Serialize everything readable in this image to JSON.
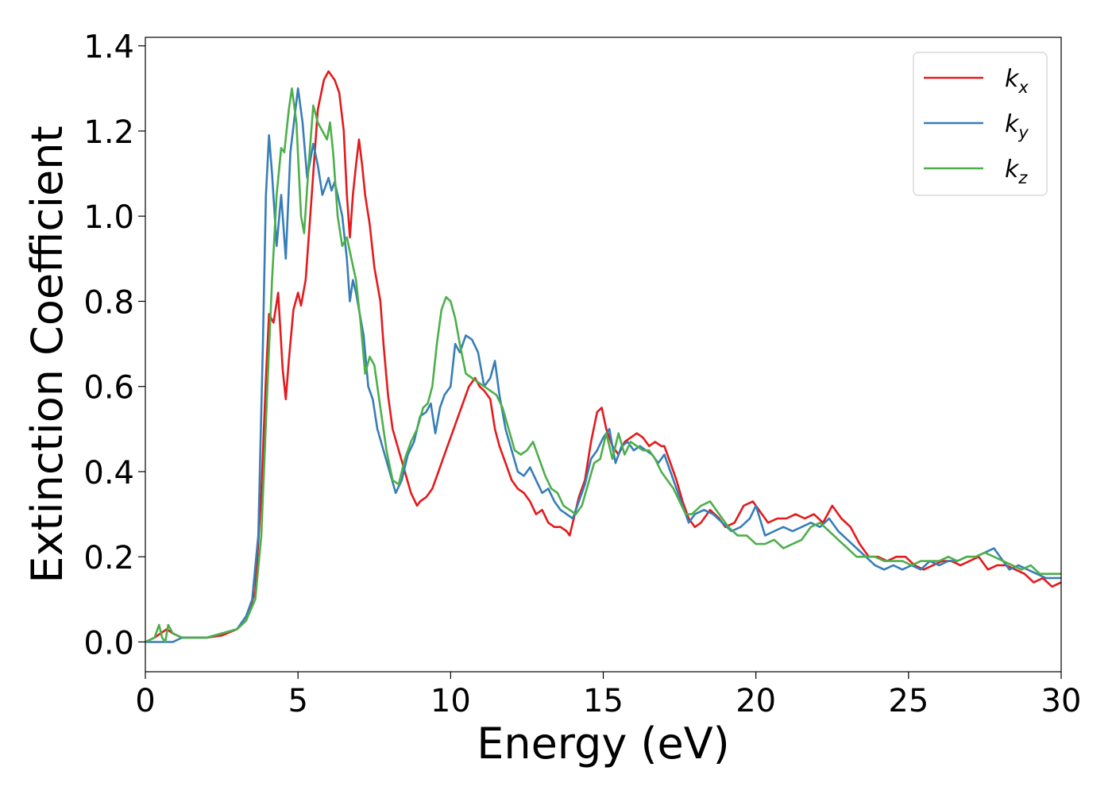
{
  "chart_data": {
    "type": "line",
    "title": "",
    "xlabel": "Energy (eV)",
    "ylabel": "Extinction Coefficient",
    "xlim": [
      0,
      30
    ],
    "ylim": [
      -0.07,
      1.42
    ],
    "xticks": [
      0,
      5,
      10,
      15,
      20,
      25,
      30
    ],
    "xtick_labels": [
      "0",
      "5",
      "10",
      "15",
      "20",
      "25",
      "30"
    ],
    "yticks": [
      0.0,
      0.2,
      0.4,
      0.6,
      0.8,
      1.0,
      1.2,
      1.4
    ],
    "ytick_labels": [
      "0.0",
      "0.2",
      "0.4",
      "0.6",
      "0.8",
      "1.0",
      "1.2",
      "1.4"
    ],
    "grid": false,
    "legend_position": "top-right",
    "series": [
      {
        "name": "k_x",
        "label_main": "k",
        "label_sub": "x",
        "color": "#e41a1c",
        "x": [
          0,
          0.3,
          0.5,
          0.7,
          0.9,
          1.2,
          1.5,
          2.0,
          2.5,
          3.0,
          3.3,
          3.6,
          3.8,
          3.95,
          4.05,
          4.2,
          4.35,
          4.5,
          4.6,
          4.7,
          4.85,
          5.0,
          5.1,
          5.25,
          5.45,
          5.65,
          5.85,
          6.0,
          6.2,
          6.35,
          6.5,
          6.6,
          6.7,
          6.8,
          6.9,
          7.0,
          7.1,
          7.2,
          7.35,
          7.5,
          7.6,
          7.7,
          7.8,
          7.95,
          8.1,
          8.3,
          8.5,
          8.7,
          8.9,
          9.0,
          9.2,
          9.4,
          9.6,
          9.8,
          10.0,
          10.2,
          10.4,
          10.6,
          10.8,
          10.95,
          11.1,
          11.2,
          11.3,
          11.45,
          11.6,
          11.8,
          12.0,
          12.2,
          12.4,
          12.6,
          12.8,
          13.0,
          13.2,
          13.4,
          13.6,
          13.8,
          13.9,
          14.0,
          14.2,
          14.4,
          14.6,
          14.8,
          14.95,
          15.1,
          15.3,
          15.5,
          15.7,
          15.9,
          16.1,
          16.3,
          16.5,
          16.7,
          16.9,
          17.0,
          17.2,
          17.4,
          17.6,
          17.8,
          18.0,
          18.2,
          18.5,
          18.8,
          19.0,
          19.3,
          19.6,
          19.9,
          20.1,
          20.4,
          20.7,
          21.0,
          21.3,
          21.6,
          21.9,
          22.2,
          22.5,
          22.8,
          23.1,
          23.4,
          23.7,
          24.0,
          24.3,
          24.6,
          24.9,
          25.2,
          25.5,
          25.8,
          26.1,
          26.4,
          26.7,
          27.0,
          27.3,
          27.6,
          27.9,
          28.2,
          28.5,
          28.8,
          29.1,
          29.4,
          29.7,
          30.0
        ],
        "values": [
          0.0,
          0.01,
          0.02,
          0.03,
          0.02,
          0.01,
          0.01,
          0.01,
          0.015,
          0.03,
          0.05,
          0.12,
          0.35,
          0.62,
          0.77,
          0.75,
          0.82,
          0.64,
          0.57,
          0.66,
          0.78,
          0.82,
          0.79,
          0.85,
          1.05,
          1.25,
          1.32,
          1.34,
          1.32,
          1.29,
          1.2,
          1.05,
          0.95,
          1.05,
          1.12,
          1.18,
          1.12,
          1.05,
          0.98,
          0.88,
          0.84,
          0.8,
          0.7,
          0.58,
          0.5,
          0.45,
          0.4,
          0.35,
          0.32,
          0.33,
          0.34,
          0.36,
          0.4,
          0.44,
          0.48,
          0.52,
          0.56,
          0.6,
          0.62,
          0.6,
          0.59,
          0.58,
          0.57,
          0.5,
          0.46,
          0.42,
          0.38,
          0.36,
          0.35,
          0.33,
          0.3,
          0.31,
          0.28,
          0.27,
          0.27,
          0.26,
          0.25,
          0.28,
          0.34,
          0.38,
          0.47,
          0.54,
          0.55,
          0.5,
          0.46,
          0.44,
          0.47,
          0.48,
          0.49,
          0.48,
          0.46,
          0.47,
          0.46,
          0.46,
          0.42,
          0.38,
          0.33,
          0.29,
          0.27,
          0.28,
          0.31,
          0.29,
          0.27,
          0.28,
          0.32,
          0.33,
          0.31,
          0.28,
          0.29,
          0.29,
          0.3,
          0.29,
          0.3,
          0.28,
          0.32,
          0.29,
          0.27,
          0.23,
          0.2,
          0.2,
          0.19,
          0.2,
          0.2,
          0.18,
          0.17,
          0.18,
          0.19,
          0.19,
          0.18,
          0.19,
          0.2,
          0.17,
          0.18,
          0.18,
          0.17,
          0.16,
          0.14,
          0.15,
          0.13,
          0.14
        ]
      },
      {
        "name": "k_y",
        "label_main": "k",
        "label_sub": "y",
        "color": "#377eb8",
        "x": [
          0,
          0.3,
          0.5,
          0.7,
          0.9,
          1.2,
          1.5,
          2.0,
          2.5,
          3.0,
          3.3,
          3.5,
          3.7,
          3.85,
          3.95,
          4.05,
          4.15,
          4.3,
          4.45,
          4.6,
          4.75,
          4.9,
          5.0,
          5.15,
          5.3,
          5.5,
          5.65,
          5.8,
          5.9,
          6.0,
          6.1,
          6.2,
          6.3,
          6.45,
          6.6,
          6.7,
          6.8,
          6.9,
          7.0,
          7.15,
          7.3,
          7.45,
          7.6,
          7.8,
          8.0,
          8.2,
          8.4,
          8.6,
          8.8,
          9.0,
          9.2,
          9.35,
          9.5,
          9.65,
          9.8,
          10.0,
          10.15,
          10.3,
          10.5,
          10.7,
          10.9,
          11.1,
          11.3,
          11.45,
          11.6,
          11.8,
          12.0,
          12.2,
          12.4,
          12.6,
          12.8,
          13.0,
          13.2,
          13.4,
          13.6,
          13.8,
          14.0,
          14.2,
          14.4,
          14.6,
          14.8,
          15.0,
          15.2,
          15.4,
          15.6,
          15.8,
          16.0,
          16.2,
          16.4,
          16.6,
          16.8,
          17.0,
          17.2,
          17.4,
          17.6,
          17.8,
          18.0,
          18.3,
          18.6,
          18.9,
          19.2,
          19.5,
          19.8,
          20.0,
          20.3,
          20.6,
          20.9,
          21.2,
          21.5,
          21.8,
          22.1,
          22.4,
          22.7,
          23.0,
          23.3,
          23.6,
          23.9,
          24.2,
          24.5,
          24.8,
          25.1,
          25.4,
          25.7,
          26.0,
          26.3,
          26.6,
          26.9,
          27.2,
          27.5,
          27.8,
          28.0,
          28.3,
          28.6,
          28.9,
          29.2,
          29.5,
          29.8,
          30.0
        ],
        "values": [
          0.0,
          0.0,
          0.0,
          0.0,
          0.0,
          0.01,
          0.01,
          0.01,
          0.02,
          0.03,
          0.06,
          0.1,
          0.25,
          0.7,
          1.05,
          1.19,
          1.1,
          0.93,
          1.05,
          0.9,
          1.15,
          1.24,
          1.3,
          1.22,
          1.09,
          1.17,
          1.12,
          1.05,
          1.07,
          1.09,
          1.06,
          1.08,
          1.05,
          1.0,
          0.9,
          0.8,
          0.85,
          0.82,
          0.78,
          0.72,
          0.6,
          0.57,
          0.5,
          0.45,
          0.4,
          0.35,
          0.38,
          0.44,
          0.47,
          0.53,
          0.54,
          0.56,
          0.49,
          0.55,
          0.58,
          0.6,
          0.7,
          0.68,
          0.72,
          0.71,
          0.68,
          0.6,
          0.62,
          0.66,
          0.58,
          0.5,
          0.45,
          0.4,
          0.39,
          0.41,
          0.38,
          0.35,
          0.36,
          0.33,
          0.31,
          0.3,
          0.29,
          0.33,
          0.37,
          0.43,
          0.45,
          0.48,
          0.5,
          0.42,
          0.46,
          0.47,
          0.45,
          0.46,
          0.45,
          0.44,
          0.42,
          0.44,
          0.4,
          0.36,
          0.32,
          0.28,
          0.3,
          0.31,
          0.3,
          0.28,
          0.26,
          0.27,
          0.29,
          0.32,
          0.25,
          0.26,
          0.27,
          0.26,
          0.27,
          0.28,
          0.27,
          0.29,
          0.26,
          0.24,
          0.22,
          0.2,
          0.18,
          0.17,
          0.18,
          0.17,
          0.18,
          0.17,
          0.19,
          0.18,
          0.19,
          0.19,
          0.2,
          0.2,
          0.21,
          0.22,
          0.2,
          0.17,
          0.18,
          0.17,
          0.16,
          0.15,
          0.15,
          0.15
        ]
      },
      {
        "name": "k_z",
        "label_main": "k",
        "label_sub": "z",
        "color": "#4daf4a",
        "x": [
          0,
          0.3,
          0.45,
          0.55,
          0.65,
          0.75,
          0.9,
          1.2,
          1.5,
          2.0,
          2.5,
          3.0,
          3.3,
          3.6,
          3.8,
          4.0,
          4.15,
          4.3,
          4.45,
          4.55,
          4.7,
          4.8,
          4.95,
          5.1,
          5.2,
          5.35,
          5.5,
          5.65,
          5.8,
          5.95,
          6.05,
          6.15,
          6.3,
          6.45,
          6.6,
          6.75,
          6.9,
          7.05,
          7.2,
          7.35,
          7.5,
          7.7,
          7.9,
          8.1,
          8.3,
          8.5,
          8.7,
          8.9,
          9.1,
          9.25,
          9.4,
          9.55,
          9.7,
          9.85,
          10.0,
          10.15,
          10.3,
          10.5,
          10.7,
          10.9,
          11.1,
          11.3,
          11.5,
          11.7,
          11.9,
          12.1,
          12.3,
          12.5,
          12.7,
          12.9,
          13.1,
          13.3,
          13.5,
          13.7,
          13.9,
          14.1,
          14.3,
          14.5,
          14.7,
          14.9,
          15.1,
          15.3,
          15.5,
          15.7,
          15.9,
          16.1,
          16.3,
          16.5,
          16.7,
          16.9,
          17.1,
          17.3,
          17.5,
          17.7,
          17.9,
          18.2,
          18.5,
          18.8,
          19.1,
          19.4,
          19.7,
          20.0,
          20.3,
          20.6,
          20.9,
          21.2,
          21.5,
          21.8,
          22.1,
          22.4,
          22.7,
          23.0,
          23.3,
          23.6,
          23.9,
          24.2,
          24.5,
          24.8,
          25.1,
          25.4,
          25.7,
          26.0,
          26.3,
          26.6,
          26.9,
          27.2,
          27.5,
          27.8,
          28.1,
          28.4,
          28.7,
          29.0,
          29.3,
          29.6,
          29.9,
          30.0
        ],
        "values": [
          0.0,
          0.01,
          0.04,
          0.01,
          0.0,
          0.04,
          0.02,
          0.01,
          0.01,
          0.01,
          0.02,
          0.03,
          0.05,
          0.1,
          0.25,
          0.6,
          0.85,
          1.05,
          1.16,
          1.15,
          1.25,
          1.3,
          1.22,
          1.0,
          0.96,
          1.12,
          1.26,
          1.22,
          1.2,
          1.18,
          1.22,
          1.15,
          1.0,
          0.93,
          0.95,
          0.9,
          0.85,
          0.75,
          0.63,
          0.67,
          0.65,
          0.55,
          0.45,
          0.38,
          0.37,
          0.43,
          0.47,
          0.5,
          0.55,
          0.56,
          0.6,
          0.7,
          0.78,
          0.81,
          0.8,
          0.76,
          0.7,
          0.63,
          0.62,
          0.61,
          0.6,
          0.59,
          0.58,
          0.55,
          0.5,
          0.45,
          0.44,
          0.45,
          0.47,
          0.43,
          0.39,
          0.36,
          0.35,
          0.32,
          0.31,
          0.3,
          0.32,
          0.37,
          0.42,
          0.43,
          0.49,
          0.43,
          0.49,
          0.44,
          0.47,
          0.46,
          0.45,
          0.45,
          0.43,
          0.4,
          0.38,
          0.36,
          0.33,
          0.3,
          0.3,
          0.32,
          0.33,
          0.3,
          0.27,
          0.25,
          0.25,
          0.23,
          0.23,
          0.24,
          0.22,
          0.23,
          0.24,
          0.27,
          0.28,
          0.26,
          0.24,
          0.22,
          0.2,
          0.2,
          0.2,
          0.19,
          0.19,
          0.19,
          0.18,
          0.19,
          0.19,
          0.19,
          0.2,
          0.19,
          0.2,
          0.2,
          0.21,
          0.2,
          0.19,
          0.18,
          0.17,
          0.18,
          0.16,
          0.16,
          0.16,
          0.16
        ]
      }
    ]
  }
}
